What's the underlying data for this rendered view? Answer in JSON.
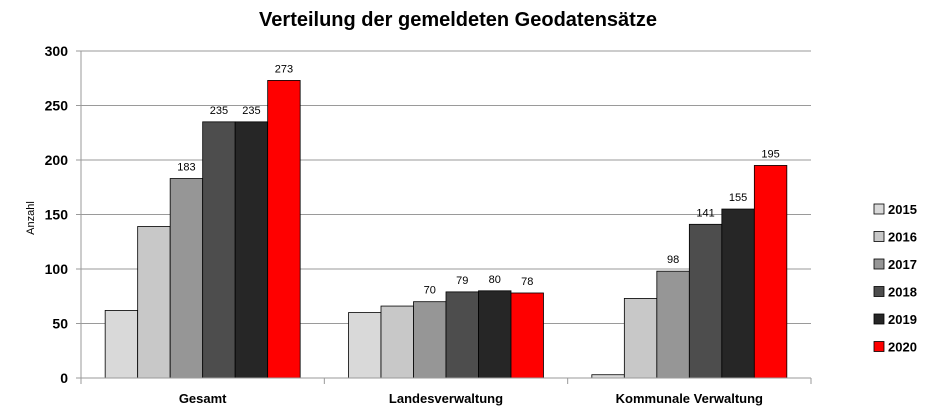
{
  "chart_data": {
    "type": "bar",
    "title": "Verteilung der gemeldeten Geodatensätze",
    "ylabel": "Anzahl",
    "xlabel": "",
    "ylim": [
      0,
      300
    ],
    "yticks": [
      0,
      50,
      100,
      150,
      200,
      250,
      300
    ],
    "grid": true,
    "legend_position": "right",
    "categories": [
      "Gesamt",
      "Landesverwaltung",
      "Kommunale Verwaltung"
    ],
    "series": [
      {
        "name": "2015",
        "color": "#d9d9d9",
        "values": [
          62,
          60,
          3
        ],
        "labels": [
          "",
          "",
          ""
        ]
      },
      {
        "name": "2016",
        "color": "#c8c8c8",
        "values": [
          139,
          66,
          73
        ],
        "labels": [
          "",
          "",
          ""
        ]
      },
      {
        "name": "2017",
        "color": "#969696",
        "values": [
          183,
          70,
          98
        ],
        "labels": [
          "183",
          "70",
          "98"
        ]
      },
      {
        "name": "2018",
        "color": "#4d4d4d",
        "values": [
          235,
          79,
          141
        ],
        "labels": [
          "235",
          "79",
          "141"
        ]
      },
      {
        "name": "2019",
        "color": "#262626",
        "values": [
          235,
          80,
          155
        ],
        "labels": [
          "235",
          "80",
          "155"
        ]
      },
      {
        "name": "2020",
        "color": "#ff0000",
        "values": [
          273,
          78,
          195
        ],
        "labels": [
          "273",
          "78",
          "195"
        ]
      }
    ]
  }
}
